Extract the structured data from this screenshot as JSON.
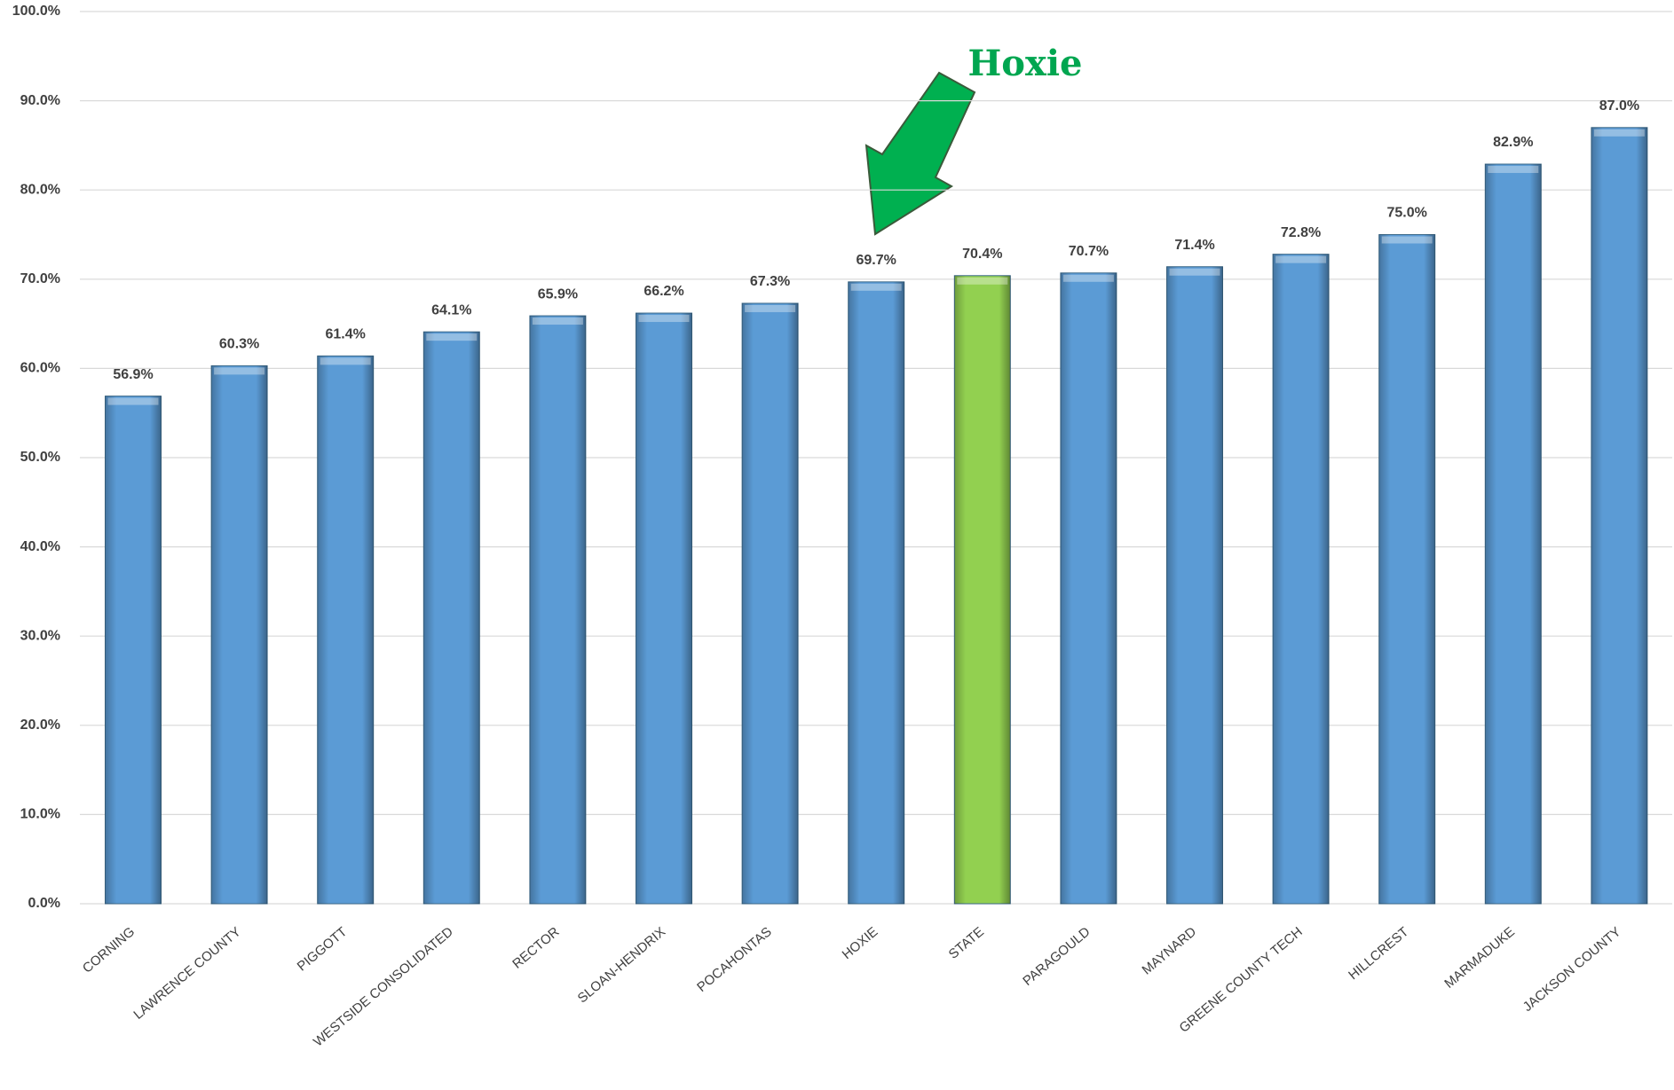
{
  "chart_data": {
    "type": "bar",
    "categories": [
      "CORNING",
      "LAWRENCE COUNTY",
      "PIGGOTT",
      "WESTSIDE CONSOLIDATED",
      "RECTOR",
      "SLOAN-HENDRIX",
      "POCAHONTAS",
      "HOXIE",
      "STATE",
      "PARAGOULD",
      "MAYNARD",
      "GREENE COUNTY TECH",
      "HILLCREST",
      "MARMADUKE",
      "JACKSON COUNTY"
    ],
    "values": [
      56.9,
      60.3,
      61.4,
      64.1,
      65.9,
      66.2,
      67.3,
      69.7,
      70.4,
      70.7,
      71.4,
      72.8,
      75.0,
      82.9,
      87.0
    ],
    "value_labels": [
      "56.9%",
      "60.3%",
      "61.4%",
      "64.1%",
      "65.9%",
      "66.2%",
      "67.3%",
      "69.7%",
      "70.4%",
      "70.7%",
      "71.4%",
      "72.8%",
      "75.0%",
      "82.9%",
      "87.0%"
    ],
    "colors": [
      "#5b9bd5",
      "#5b9bd5",
      "#5b9bd5",
      "#5b9bd5",
      "#5b9bd5",
      "#5b9bd5",
      "#5b9bd5",
      "#5b9bd5",
      "#92d050",
      "#5b9bd5",
      "#5b9bd5",
      "#5b9bd5",
      "#5b9bd5",
      "#5b9bd5",
      "#5b9bd5"
    ],
    "ylim": [
      0,
      100
    ],
    "yticks": [
      {
        "value": 0,
        "label": "0.0%"
      },
      {
        "value": 10,
        "label": "10.0%"
      },
      {
        "value": 20,
        "label": "20.0%"
      },
      {
        "value": 30,
        "label": "30.0%"
      },
      {
        "value": 40,
        "label": "40.0%"
      },
      {
        "value": 50,
        "label": "50.0%"
      },
      {
        "value": 60,
        "label": "60.0%"
      },
      {
        "value": 70,
        "label": "70.0%"
      },
      {
        "value": 80,
        "label": "80.0%"
      },
      {
        "value": 90,
        "label": "90.0%"
      },
      {
        "value": 100,
        "label": "100.0%"
      }
    ],
    "grid": true,
    "annotation": "Hoxie"
  }
}
